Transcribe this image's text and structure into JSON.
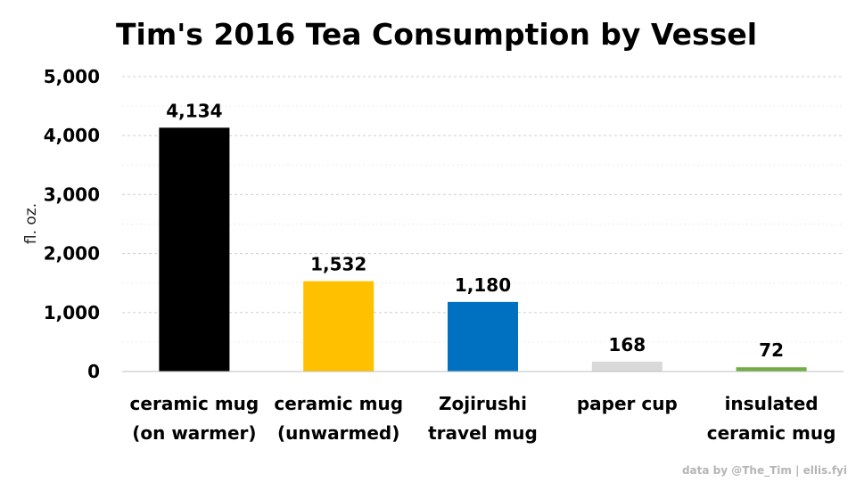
{
  "chart_data": {
    "type": "bar",
    "title": "Tim's 2016 Tea Consumption by Vessel",
    "ylabel": "fl. oz.",
    "xlabel": "",
    "ylim": [
      0,
      5000
    ],
    "yticks": [
      "0",
      "1,000",
      "2,000",
      "3,000",
      "4,000",
      "5,000"
    ],
    "ytick_values": [
      0,
      1000,
      2000,
      3000,
      4000,
      5000
    ],
    "grid": true,
    "legend": "none",
    "categories": [
      [
        "ceramic mug",
        "(on warmer)"
      ],
      [
        "ceramic mug",
        "(unwarmed)"
      ],
      [
        "Zojirushi",
        "travel mug"
      ],
      [
        "paper cup"
      ],
      [
        "insulated",
        "ceramic mug"
      ]
    ],
    "values": [
      4134,
      1532,
      1180,
      168,
      72
    ],
    "data_labels": [
      "4,134",
      "1,532",
      "1,180",
      "168",
      "72"
    ],
    "colors": [
      "#000000",
      "#ffc000",
      "#0070c0",
      "#d9d9d9",
      "#70ad47"
    ]
  },
  "credit": "data by @The_Tim | ellis.fyi"
}
